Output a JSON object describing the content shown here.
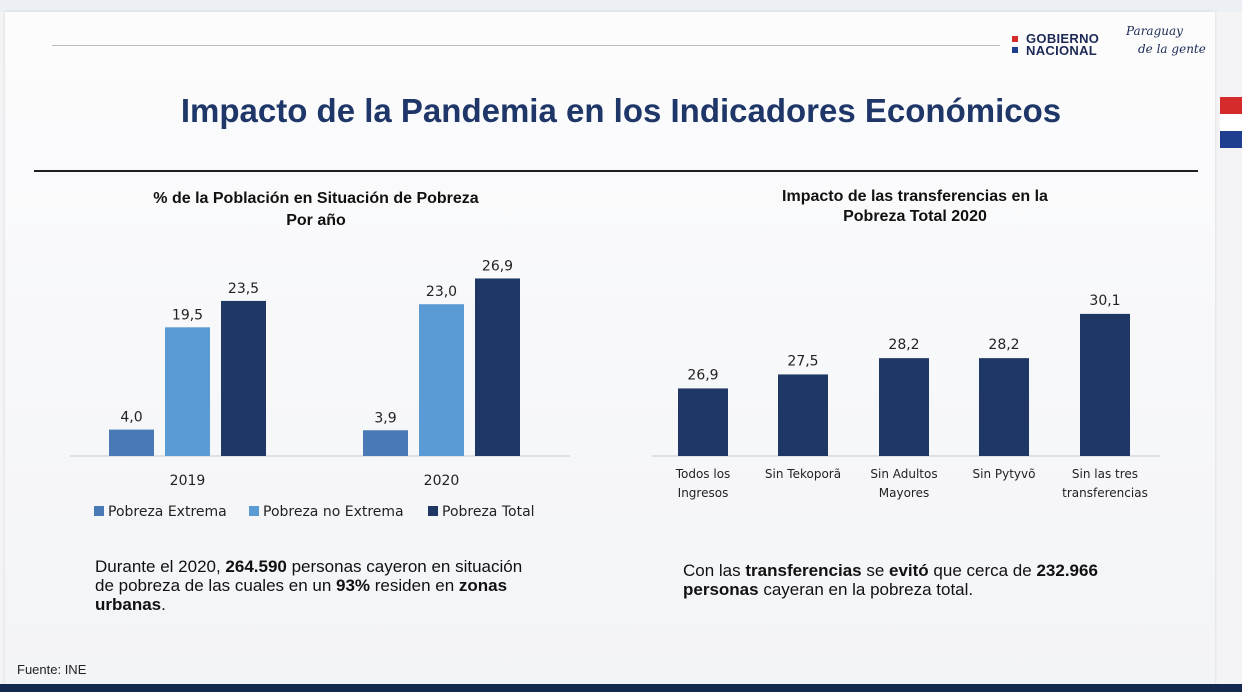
{
  "header": {
    "logo_gov_line1": "GOBIERNO",
    "logo_gov_line2": "NACIONAL",
    "logo_py_line1": "Paraguay",
    "logo_py_line2": "de la gente"
  },
  "title": "Impacto de la Pandemia en los Indicadores Económicos",
  "colors": {
    "title": "#1f3768",
    "pobreza_extrema": "#4a7ab5",
    "pobreza_no_extrema": "#5b9bd5",
    "pobreza_total": "#1f3764",
    "flag_red": "#d52b2b",
    "flag_white": "#ffffff",
    "flag_blue": "#1e3f8f"
  },
  "chart_left": {
    "title_line1": "% de la Población en Situación de Pobreza",
    "title_line2": "Por año"
  },
  "chart_right": {
    "title_line1": "Impacto de las transferencias en la",
    "title_line2": "Pobreza Total 2020"
  },
  "chart_data": [
    {
      "type": "bar",
      "title": "% de la Población en Situación de Pobreza Por año",
      "categories": [
        "2019",
        "2020"
      ],
      "series": [
        {
          "name": "Pobreza Extrema",
          "values": [
            4.0,
            3.9
          ],
          "labels": [
            "4,0",
            "3,9"
          ]
        },
        {
          "name": "Pobreza no Extrema",
          "values": [
            19.5,
            23.0
          ],
          "labels": [
            "19,5",
            "23,0"
          ]
        },
        {
          "name": "Pobreza Total",
          "values": [
            23.5,
            26.9
          ],
          "labels": [
            "23,5",
            "26,9"
          ]
        }
      ],
      "ylim": [
        0,
        30
      ],
      "grid": false,
      "legend": "bottom"
    },
    {
      "type": "bar",
      "title": "Impacto de las transferencias en la Pobreza Total 2020",
      "categories": [
        [
          "Todos los",
          "Ingresos"
        ],
        [
          "Sin Tekoporã"
        ],
        [
          "Sin Adultos",
          "Mayores"
        ],
        [
          "Sin Pytyvõ"
        ],
        [
          "Sin las tres",
          "transferencias"
        ]
      ],
      "values": [
        26.9,
        27.5,
        28.2,
        28.2,
        30.1
      ],
      "labels": [
        "26,9",
        "27,5",
        "28,2",
        "28,2",
        "30,1"
      ],
      "ylim": [
        24,
        31
      ],
      "grid": false
    }
  ],
  "notes": {
    "left": [
      {
        "text": "Durante el 2020, ",
        "bold": false
      },
      {
        "text": "264.590",
        "bold": true
      },
      {
        "text": " personas cayeron en situación de pobreza de las cuales en un ",
        "bold": false
      },
      {
        "text": "93%",
        "bold": true
      },
      {
        "text": " residen en ",
        "bold": false
      },
      {
        "text": "zonas urbanas",
        "bold": true
      },
      {
        "text": ".",
        "bold": false
      }
    ],
    "right": [
      {
        "text": "Con las ",
        "bold": false
      },
      {
        "text": "transferencias",
        "bold": true
      },
      {
        "text": " se ",
        "bold": false
      },
      {
        "text": "evitó",
        "bold": true
      },
      {
        "text": " que cerca de ",
        "bold": false
      },
      {
        "text": "232.966 personas",
        "bold": true
      },
      {
        "text": " cayeran en la pobreza total.",
        "bold": false
      }
    ]
  },
  "source": "Fuente: INE"
}
